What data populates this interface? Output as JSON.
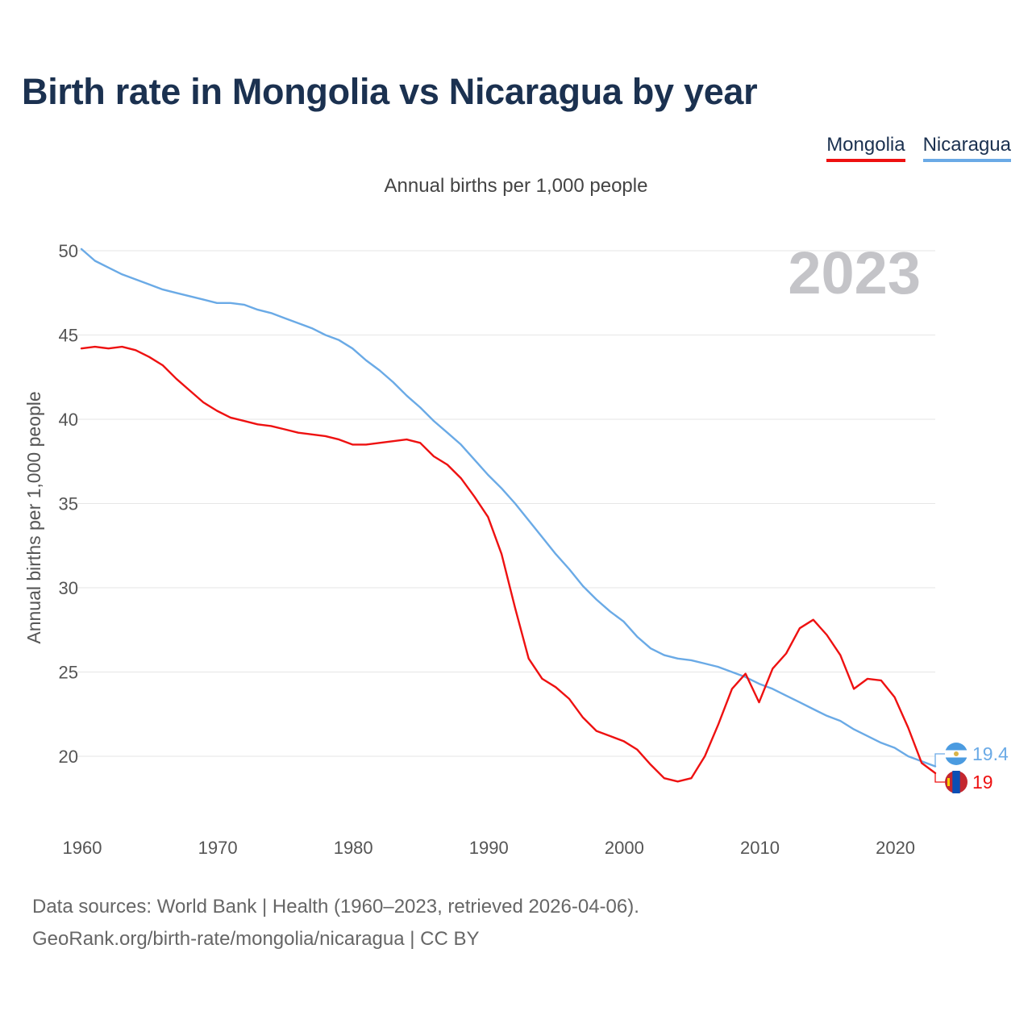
{
  "chart_data": {
    "type": "line",
    "title": "Birth rate in Mongolia vs Nicaragua by year",
    "subtitle": "Annual births per 1,000 people",
    "ylabel": "Annual births per 1,000 people",
    "xlabel": "",
    "year_label": "2023",
    "xlim": [
      1960,
      2023
    ],
    "ylim": [
      17,
      51
    ],
    "x_ticks": [
      1960,
      1970,
      1980,
      1990,
      2000,
      2010,
      2020
    ],
    "y_ticks": [
      20,
      25,
      30,
      35,
      40,
      45,
      50
    ],
    "x": [
      1960,
      1961,
      1962,
      1963,
      1964,
      1965,
      1966,
      1967,
      1968,
      1969,
      1970,
      1971,
      1972,
      1973,
      1974,
      1975,
      1976,
      1977,
      1978,
      1979,
      1980,
      1981,
      1982,
      1983,
      1984,
      1985,
      1986,
      1987,
      1988,
      1989,
      1990,
      1991,
      1992,
      1993,
      1994,
      1995,
      1996,
      1997,
      1998,
      1999,
      2000,
      2001,
      2002,
      2003,
      2004,
      2005,
      2006,
      2007,
      2008,
      2009,
      2010,
      2011,
      2012,
      2013,
      2014,
      2015,
      2016,
      2017,
      2018,
      2019,
      2020,
      2021,
      2022,
      2023
    ],
    "series": [
      {
        "name": "Mongolia",
        "color": "#ee1111",
        "end_label": "19",
        "values": [
          44.2,
          44.3,
          44.2,
          44.3,
          44.1,
          43.7,
          43.2,
          42.4,
          41.7,
          41.0,
          40.5,
          40.1,
          39.9,
          39.7,
          39.6,
          39.4,
          39.2,
          39.1,
          39.0,
          38.8,
          38.5,
          38.5,
          38.6,
          38.7,
          38.8,
          38.6,
          37.8,
          37.3,
          36.5,
          35.4,
          34.2,
          32.0,
          28.8,
          25.8,
          24.6,
          24.1,
          23.4,
          22.3,
          21.5,
          21.2,
          20.9,
          20.4,
          19.5,
          18.7,
          18.5,
          18.7,
          20.0,
          21.9,
          24.0,
          24.9,
          23.2,
          25.2,
          26.1,
          27.6,
          28.1,
          27.2,
          26.0,
          24.0,
          24.6,
          24.5,
          23.5,
          21.7,
          19.6,
          19.0
        ]
      },
      {
        "name": "Nicaragua",
        "color": "#6aaae6",
        "end_label": "19.4",
        "values": [
          50.1,
          49.4,
          49.0,
          48.6,
          48.3,
          48.0,
          47.7,
          47.5,
          47.3,
          47.1,
          46.9,
          46.9,
          46.8,
          46.5,
          46.3,
          46.0,
          45.7,
          45.4,
          45.0,
          44.7,
          44.2,
          43.5,
          42.9,
          42.2,
          41.4,
          40.7,
          39.9,
          39.2,
          38.5,
          37.6,
          36.7,
          35.9,
          35.0,
          34.0,
          33.0,
          32.0,
          31.1,
          30.1,
          29.3,
          28.6,
          28.0,
          27.1,
          26.4,
          26.0,
          25.8,
          25.7,
          25.5,
          25.3,
          25.0,
          24.7,
          24.3,
          24.0,
          23.6,
          23.2,
          22.8,
          22.4,
          22.1,
          21.6,
          21.2,
          20.8,
          20.5,
          20.0,
          19.7,
          19.4
        ]
      }
    ]
  },
  "legend": {
    "mongolia": "Mongolia",
    "nicaragua": "Nicaragua"
  },
  "footer": {
    "line1": "Data sources: World Bank | Health (1960–2023, retrieved 2026-04-06).",
    "line2": "GeoRank.org/birth-rate/mongolia/nicaragua | CC BY"
  }
}
